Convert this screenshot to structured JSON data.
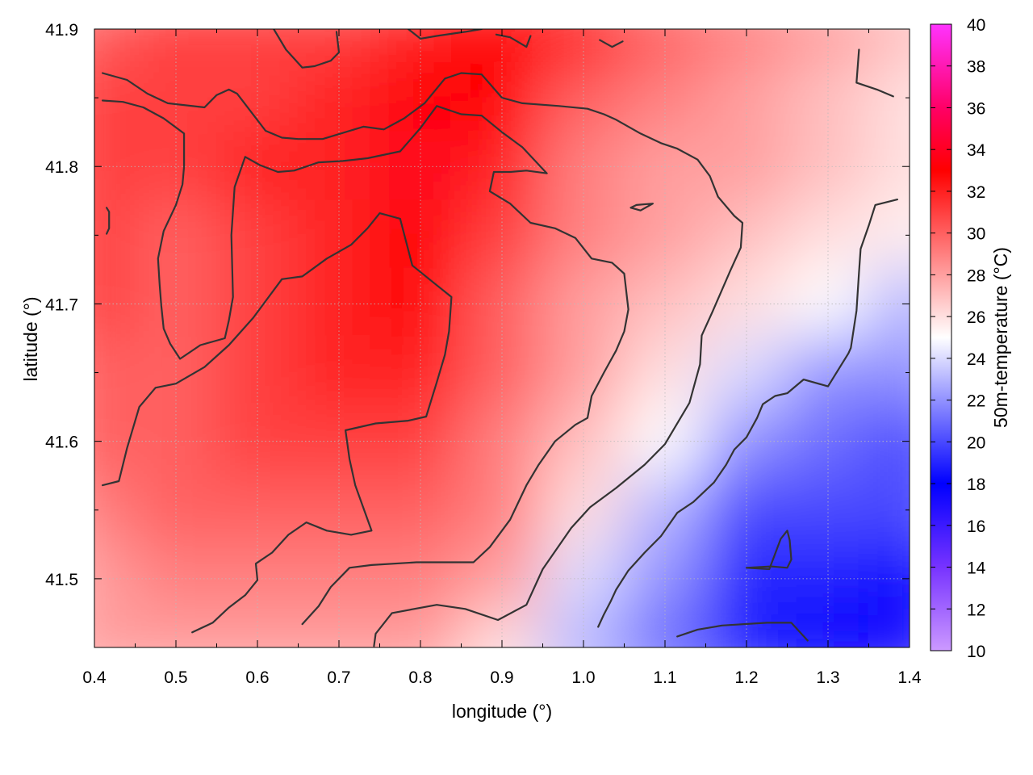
{
  "chart_data": {
    "type": "heatmap",
    "xlabel": "longitude (°)",
    "ylabel": "latitude (°)",
    "colorbar_label": "50m-temperature (°C)",
    "xlim": [
      0.4,
      1.4
    ],
    "ylim": [
      41.45,
      41.9
    ],
    "x_ticks": [
      "0.4",
      "0.5",
      "0.6",
      "0.7",
      "0.8",
      "0.9",
      "1.0",
      "1.1",
      "1.2",
      "1.3",
      "1.4"
    ],
    "y_ticks": [
      "41.5",
      "41.6",
      "41.7",
      "41.8",
      "41.9"
    ],
    "colorbar_ticks": [
      "10",
      "12",
      "14",
      "16",
      "18",
      "20",
      "22",
      "24",
      "26",
      "28",
      "30",
      "32",
      "34",
      "36",
      "38",
      "40"
    ],
    "colorbar_range": [
      10,
      40
    ],
    "colorbar_stops": [
      {
        "value": 10,
        "color": "#cc99ff"
      },
      {
        "value": 14,
        "color": "#7733ff"
      },
      {
        "value": 18,
        "color": "#0000ff"
      },
      {
        "value": 25,
        "color": "#ffffff"
      },
      {
        "value": 33,
        "color": "#ff0000"
      },
      {
        "value": 36,
        "color": "#ff0066"
      },
      {
        "value": 40,
        "color": "#ff33ff"
      }
    ],
    "grid": true,
    "temperature_field": {
      "lon": [
        0.4,
        0.5,
        0.6,
        0.7,
        0.8,
        0.9,
        1.0,
        1.1,
        1.2,
        1.3,
        1.4
      ],
      "lat": [
        41.9,
        41.85,
        41.8,
        41.75,
        41.7,
        41.65,
        41.6,
        41.55,
        41.5,
        41.45
      ],
      "values": [
        [
          30,
          31,
          31,
          31,
          32,
          33,
          32,
          30,
          29,
          28,
          27
        ],
        [
          31,
          31,
          31,
          32,
          33,
          33,
          30,
          29,
          28,
          27,
          26
        ],
        [
          31,
          31,
          32,
          32,
          34,
          32,
          29,
          28,
          28,
          27,
          26
        ],
        [
          31,
          30,
          31,
          32,
          33,
          31,
          29,
          28,
          27,
          26,
          25.5
        ],
        [
          31,
          30,
          31,
          32,
          33,
          30,
          28,
          27,
          26,
          25,
          23
        ],
        [
          30,
          30,
          31,
          32,
          32,
          30,
          28,
          26,
          24,
          22,
          22
        ],
        [
          30,
          30,
          31,
          31,
          31,
          29,
          27,
          25,
          22,
          21,
          20
        ],
        [
          29,
          30,
          30,
          30,
          30,
          29,
          26,
          23,
          20,
          20,
          20
        ],
        [
          28,
          29,
          29,
          29,
          29,
          28,
          24,
          22,
          19,
          19,
          18
        ],
        [
          28,
          28,
          28,
          28,
          28,
          26,
          23,
          21,
          19,
          18,
          17
        ]
      ]
    },
    "contours": [
      [
        [
          0.41,
          41.868
        ],
        [
          0.44,
          41.863
        ],
        [
          0.465,
          41.853
        ],
        [
          0.49,
          41.846
        ],
        [
          0.535,
          41.843
        ],
        [
          0.55,
          41.852
        ],
        [
          0.565,
          41.856
        ],
        [
          0.575,
          41.853
        ],
        [
          0.61,
          41.826
        ],
        [
          0.63,
          41.821
        ],
        [
          0.65,
          41.82
        ],
        [
          0.68,
          41.82
        ],
        [
          0.73,
          41.829
        ],
        [
          0.755,
          41.827
        ],
        [
          0.78,
          41.835
        ],
        [
          0.805,
          41.846
        ],
        [
          0.83,
          41.864
        ],
        [
          0.85,
          41.868
        ],
        [
          0.875,
          41.867
        ],
        [
          0.9,
          41.85
        ],
        [
          0.925,
          41.846
        ],
        [
          0.97,
          41.844
        ],
        [
          1.005,
          41.842
        ],
        [
          1.025,
          41.838
        ],
        [
          1.04,
          41.834
        ],
        [
          1.07,
          41.824
        ],
        [
          1.095,
          41.817
        ],
        [
          1.115,
          41.813
        ],
        [
          1.14,
          41.805
        ],
        [
          1.155,
          41.793
        ],
        [
          1.165,
          41.778
        ],
        [
          1.185,
          41.764
        ],
        [
          1.195,
          41.759
        ],
        [
          1.193,
          41.741
        ],
        [
          1.18,
          41.724
        ],
        [
          1.158,
          41.694
        ],
        [
          1.145,
          41.677
        ],
        [
          1.143,
          41.656
        ],
        [
          1.13,
          41.628
        ],
        [
          1.1,
          41.598
        ],
        [
          1.075,
          41.583
        ],
        [
          1.04,
          41.566
        ],
        [
          1.008,
          41.552
        ],
        [
          0.985,
          41.537
        ],
        [
          0.95,
          41.507
        ],
        [
          0.93,
          41.481
        ],
        [
          0.895,
          41.47
        ],
        [
          0.855,
          41.478
        ],
        [
          0.82,
          41.481
        ],
        [
          0.765,
          41.475
        ],
        [
          0.745,
          41.46
        ],
        [
          0.743,
          41.451
        ]
      ],
      [
        [
          0.41,
          41.848
        ],
        [
          0.435,
          41.847
        ],
        [
          0.46,
          41.843
        ],
        [
          0.485,
          41.835
        ],
        [
          0.51,
          41.824
        ],
        [
          0.51,
          41.8
        ],
        [
          0.508,
          41.787
        ],
        [
          0.5,
          41.772
        ],
        [
          0.485,
          41.753
        ],
        [
          0.478,
          41.733
        ],
        [
          0.48,
          41.714
        ],
        [
          0.482,
          41.699
        ],
        [
          0.485,
          41.682
        ],
        [
          0.493,
          41.671
        ],
        [
          0.505,
          41.66
        ],
        [
          0.53,
          41.67
        ],
        [
          0.56,
          41.675
        ],
        [
          0.565,
          41.688
        ],
        [
          0.57,
          41.705
        ],
        [
          0.568,
          41.75
        ],
        [
          0.572,
          41.785
        ],
        [
          0.585,
          41.807
        ],
        [
          0.603,
          41.801
        ],
        [
          0.625,
          41.796
        ],
        [
          0.645,
          41.797
        ],
        [
          0.675,
          41.803
        ],
        [
          0.705,
          41.804
        ],
        [
          0.735,
          41.806
        ],
        [
          0.775,
          41.811
        ],
        [
          0.8,
          41.828
        ],
        [
          0.82,
          41.844
        ],
        [
          0.85,
          41.838
        ],
        [
          0.875,
          41.837
        ],
        [
          0.9,
          41.825
        ],
        [
          0.925,
          41.814
        ],
        [
          0.955,
          41.795
        ],
        [
          0.93,
          41.797
        ],
        [
          0.91,
          41.796
        ],
        [
          0.89,
          41.796
        ],
        [
          0.885,
          41.782
        ],
        [
          0.91,
          41.773
        ],
        [
          0.935,
          41.759
        ],
        [
          0.965,
          41.755
        ],
        [
          0.99,
          41.748
        ],
        [
          1.01,
          41.733
        ],
        [
          1.035,
          41.73
        ],
        [
          1.05,
          41.722
        ],
        [
          1.055,
          41.696
        ],
        [
          1.05,
          41.68
        ],
        [
          1.04,
          41.666
        ],
        [
          1.025,
          41.65
        ],
        [
          1.01,
          41.633
        ],
        [
          1.005,
          41.617
        ],
        [
          0.99,
          41.612
        ],
        [
          0.965,
          41.6
        ],
        [
          0.945,
          41.583
        ],
        [
          0.93,
          41.568
        ],
        [
          0.91,
          41.543
        ],
        [
          0.885,
          41.523
        ],
        [
          0.865,
          41.512
        ],
        [
          0.84,
          41.512
        ],
        [
          0.795,
          41.512
        ],
        [
          0.74,
          41.51
        ],
        [
          0.713,
          41.508
        ],
        [
          0.69,
          41.494
        ],
        [
          0.675,
          41.48
        ],
        [
          0.655,
          41.467
        ]
      ],
      [
        [
          0.41,
          41.568
        ],
        [
          0.43,
          41.571
        ],
        [
          0.44,
          41.595
        ],
        [
          0.455,
          41.625
        ],
        [
          0.475,
          41.639
        ],
        [
          0.5,
          41.642
        ],
        [
          0.535,
          41.654
        ],
        [
          0.565,
          41.67
        ],
        [
          0.595,
          41.69
        ],
        [
          0.61,
          41.702
        ],
        [
          0.63,
          41.718
        ],
        [
          0.655,
          41.72
        ],
        [
          0.685,
          41.733
        ],
        [
          0.715,
          41.743
        ],
        [
          0.735,
          41.755
        ],
        [
          0.75,
          41.766
        ],
        [
          0.775,
          41.762
        ],
        [
          0.79,
          41.728
        ],
        [
          0.815,
          41.716
        ],
        [
          0.838,
          41.705
        ],
        [
          0.835,
          41.68
        ],
        [
          0.83,
          41.663
        ],
        [
          0.82,
          41.643
        ],
        [
          0.807,
          41.618
        ],
        [
          0.785,
          41.615
        ],
        [
          0.745,
          41.613
        ],
        [
          0.708,
          41.608
        ],
        [
          0.713,
          41.587
        ],
        [
          0.72,
          41.568
        ],
        [
          0.74,
          41.535
        ],
        [
          0.715,
          41.532
        ],
        [
          0.685,
          41.535
        ],
        [
          0.66,
          41.541
        ],
        [
          0.638,
          41.532
        ],
        [
          0.618,
          41.519
        ],
        [
          0.598,
          41.511
        ],
        [
          0.6,
          41.499
        ],
        [
          0.585,
          41.488
        ],
        [
          0.565,
          41.479
        ],
        [
          0.545,
          41.468
        ],
        [
          0.52,
          41.461
        ]
      ],
      [
        [
          0.62,
          41.9
        ],
        [
          0.635,
          41.885
        ],
        [
          0.655,
          41.872
        ],
        [
          0.67,
          41.873
        ],
        [
          0.69,
          41.877
        ],
        [
          0.7,
          41.883
        ],
        [
          0.697,
          41.898
        ]
      ],
      [
        [
          0.785,
          41.9
        ],
        [
          0.8,
          41.893
        ],
        [
          0.82,
          41.895
        ],
        [
          0.855,
          41.898
        ],
        [
          0.875,
          41.9
        ]
      ],
      [
        [
          0.893,
          41.896
        ],
        [
          0.91,
          41.894
        ],
        [
          0.93,
          41.887
        ],
        [
          0.935,
          41.895
        ]
      ],
      [
        [
          1.02,
          41.892
        ],
        [
          1.035,
          41.887
        ],
        [
          1.048,
          41.891
        ]
      ],
      [
        [
          0.415,
          41.77
        ],
        [
          0.418,
          41.767
        ],
        [
          0.418,
          41.755
        ],
        [
          0.415,
          41.751
        ]
      ],
      [
        [
          1.058,
          41.77
        ],
        [
          1.065,
          41.772
        ],
        [
          1.085,
          41.773
        ],
        [
          1.07,
          41.768
        ],
        [
          1.058,
          41.77
        ]
      ],
      [
        [
          1.338,
          41.885
        ],
        [
          1.335,
          41.861
        ],
        [
          1.36,
          41.856
        ],
        [
          1.38,
          41.851
        ]
      ],
      [
        [
          1.018,
          41.465
        ],
        [
          1.025,
          41.474
        ],
        [
          1.033,
          41.483
        ],
        [
          1.04,
          41.492
        ],
        [
          1.055,
          41.506
        ],
        [
          1.075,
          41.519
        ],
        [
          1.095,
          41.531
        ],
        [
          1.115,
          41.548
        ],
        [
          1.135,
          41.556
        ],
        [
          1.16,
          41.57
        ],
        [
          1.175,
          41.583
        ],
        [
          1.185,
          41.594
        ],
        [
          1.2,
          41.603
        ],
        [
          1.213,
          41.617
        ],
        [
          1.22,
          41.627
        ],
        [
          1.235,
          41.633
        ],
        [
          1.25,
          41.635
        ],
        [
          1.27,
          41.645
        ],
        [
          1.3,
          41.64
        ],
        [
          1.325,
          41.664
        ],
        [
          1.328,
          41.668
        ],
        [
          1.335,
          41.695
        ],
        [
          1.338,
          41.723
        ],
        [
          1.34,
          41.74
        ],
        [
          1.35,
          41.757
        ],
        [
          1.358,
          41.772
        ],
        [
          1.385,
          41.776
        ]
      ],
      [
        [
          1.115,
          41.458
        ],
        [
          1.14,
          41.463
        ],
        [
          1.17,
          41.466
        ],
        [
          1.225,
          41.468
        ],
        [
          1.255,
          41.468
        ],
        [
          1.275,
          41.455
        ]
      ],
      [
        [
          1.2,
          41.508
        ],
        [
          1.23,
          41.509
        ],
        [
          1.25,
          41.508
        ],
        [
          1.255,
          41.514
        ],
        [
          1.253,
          41.528
        ],
        [
          1.25,
          41.535
        ],
        [
          1.242,
          41.529
        ],
        [
          1.228,
          41.507
        ],
        [
          1.2,
          41.508
        ]
      ]
    ]
  }
}
